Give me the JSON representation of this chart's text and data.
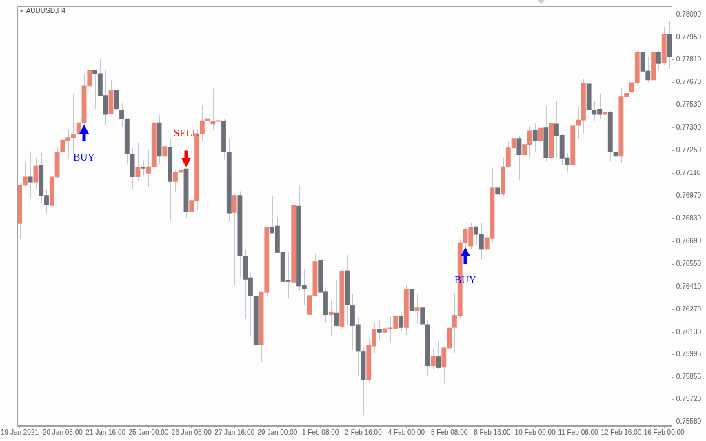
{
  "chart_data": {
    "type": "candlestick",
    "title": "AUDUSD,H4",
    "categories": [
      "19 Jan 2021",
      null,
      null,
      null,
      null,
      null,
      null,
      null,
      "20 Jan 08:00",
      null,
      null,
      null,
      null,
      null,
      null,
      null,
      "21 Jan 16:00",
      null,
      null,
      null,
      null,
      null,
      null,
      null,
      "25 Jan 00:00",
      null,
      null,
      null,
      null,
      null,
      null,
      null,
      "26 Jan 08:00",
      null,
      null,
      null,
      null,
      null,
      null,
      null,
      "27 Jan 16:00",
      null,
      null,
      null,
      null,
      null,
      null,
      null,
      "29 Jan 00:00",
      null,
      null,
      null,
      null,
      null,
      null,
      null,
      "1 Feb 08:00",
      null,
      null,
      null,
      null,
      null,
      null,
      null,
      "2 Feb 16:00",
      null,
      null,
      null,
      null,
      null,
      null,
      null,
      "4 Feb 00:00",
      null,
      null,
      null,
      null,
      null,
      null,
      null,
      "5 Feb 08:00",
      null,
      null,
      null,
      null,
      null,
      null,
      null,
      "8 Feb 16:00",
      null,
      null,
      null,
      null,
      null,
      null,
      null,
      "10 Feb 00:00",
      null,
      null,
      null,
      null,
      null,
      null,
      null,
      "11 Feb 08:00",
      null,
      null,
      null,
      null,
      null,
      null,
      null,
      "12 Feb 16:00",
      null,
      null,
      null,
      null,
      null,
      null,
      null,
      "16 Feb 00:00",
      null
    ],
    "ohlc": [
      [
        0.768,
        0.77047,
        0.76707,
        0.77038
      ],
      [
        0.77035,
        0.77181,
        0.77022,
        0.77089
      ],
      [
        0.77089,
        0.77245,
        0.76959,
        0.77056
      ],
      [
        0.77056,
        0.77203,
        0.77015,
        0.77156
      ],
      [
        0.7716,
        0.77235,
        0.76924,
        0.76973
      ],
      [
        0.76976,
        0.77015,
        0.76864,
        0.76914
      ],
      [
        0.7691,
        0.77138,
        0.76882,
        0.77089
      ],
      [
        0.77086,
        0.77273,
        0.77083,
        0.77244
      ],
      [
        0.77241,
        0.77404,
        0.7722,
        0.77318
      ],
      [
        0.77312,
        0.77385,
        0.77201,
        0.77332
      ],
      [
        0.77329,
        0.77601,
        0.77231,
        0.77353
      ],
      [
        0.7735,
        0.77483,
        0.7735,
        0.77424
      ],
      [
        0.7742,
        0.77724,
        0.77406,
        0.7765
      ],
      [
        0.77647,
        0.77767,
        0.77643,
        0.77748
      ],
      [
        0.77748,
        0.77748,
        0.77508,
        0.77724
      ],
      [
        0.77726,
        0.77814,
        0.77587,
        0.77587
      ],
      [
        0.77591,
        0.77748,
        0.77406,
        0.77471
      ],
      [
        0.77475,
        0.77685,
        0.77471,
        0.77621
      ],
      [
        0.77625,
        0.77688,
        0.77506,
        0.77506
      ],
      [
        0.77503,
        0.77541,
        0.77399,
        0.77446
      ],
      [
        0.77449,
        0.77449,
        0.77165,
        0.77228
      ],
      [
        0.77231,
        0.77266,
        0.77012,
        0.77087
      ],
      [
        0.77087,
        0.77301,
        0.77061,
        0.77147
      ],
      [
        0.77147,
        0.77192,
        0.77098,
        0.77139
      ],
      [
        0.7711,
        0.77255,
        0.77025,
        0.77152
      ],
      [
        0.77147,
        0.77434,
        0.77147,
        0.77424
      ],
      [
        0.77424,
        0.77469,
        0.77168,
        0.77214
      ],
      [
        0.77214,
        0.77354,
        0.77164,
        0.77277
      ],
      [
        0.77273,
        0.77326,
        0.76816,
        0.77059
      ],
      [
        0.77059,
        0.77131,
        0.76994,
        0.77118
      ],
      [
        0.77115,
        0.77164,
        0.77001,
        0.77134
      ],
      [
        0.77139,
        0.77139,
        0.76833,
        0.76875
      ],
      [
        0.76872,
        0.77008,
        0.76679,
        0.76946
      ],
      [
        0.76942,
        0.77385,
        0.76885,
        0.77357
      ],
      [
        0.77354,
        0.77532,
        0.77312,
        0.77436
      ],
      [
        0.77432,
        0.77524,
        0.7742,
        0.77449
      ],
      [
        0.77413,
        0.77633,
        0.77378,
        0.77432
      ],
      [
        0.77429,
        0.77445,
        0.77283,
        0.77438
      ],
      [
        0.77432,
        0.77445,
        0.77196,
        0.77241
      ],
      [
        0.77244,
        0.77326,
        0.76815,
        0.76864
      ],
      [
        0.76868,
        0.76987,
        0.76425,
        0.76976
      ],
      [
        0.76976,
        0.77001,
        0.7647,
        0.766
      ],
      [
        0.766,
        0.76645,
        0.76214,
        0.76456
      ],
      [
        0.76469,
        0.76498,
        0.76104,
        0.76357
      ],
      [
        0.76357,
        0.76357,
        0.75904,
        0.76054
      ],
      [
        0.76054,
        0.76389,
        0.75946,
        0.76379
      ],
      [
        0.76376,
        0.76782,
        0.76351,
        0.76782
      ],
      [
        0.76782,
        0.76973,
        0.76742,
        0.76742
      ],
      [
        0.76787,
        0.7684,
        0.76621,
        0.76621
      ],
      [
        0.76628,
        0.76654,
        0.76351,
        0.76443
      ],
      [
        0.76452,
        0.76624,
        0.76344,
        0.76443
      ],
      [
        0.76439,
        0.77001,
        0.76368,
        0.76914
      ],
      [
        0.7691,
        0.77035,
        0.76389,
        0.76415
      ],
      [
        0.76422,
        0.76523,
        0.76301,
        0.76397
      ],
      [
        0.76239,
        0.76431,
        0.76047,
        0.7636
      ],
      [
        0.76355,
        0.76612,
        0.76355,
        0.76569
      ],
      [
        0.76575,
        0.76619,
        0.76242,
        0.76376
      ],
      [
        0.76381,
        0.76407,
        0.76188,
        0.76238
      ],
      [
        0.76238,
        0.7633,
        0.76109,
        0.76256
      ],
      [
        0.76252,
        0.76453,
        0.76163,
        0.76171
      ],
      [
        0.76167,
        0.76522,
        0.76156,
        0.76508
      ],
      [
        0.76512,
        0.76607,
        0.76181,
        0.76301
      ],
      [
        0.76301,
        0.76368,
        0.76023,
        0.76171
      ],
      [
        0.76181,
        0.76217,
        0.75862,
        0.76012
      ],
      [
        0.76013,
        0.76044,
        0.75622,
        0.75837
      ],
      [
        0.75837,
        0.761,
        0.7582,
        0.76055
      ],
      [
        0.76045,
        0.76189,
        0.76005,
        0.76151
      ],
      [
        0.76151,
        0.76202,
        0.76079,
        0.76129
      ],
      [
        0.76129,
        0.76256,
        0.76005,
        0.76156
      ],
      [
        0.7615,
        0.7623,
        0.76072,
        0.7616
      ],
      [
        0.76154,
        0.76251,
        0.76055,
        0.7623
      ],
      [
        0.7623,
        0.76246,
        0.76135,
        0.76159
      ],
      [
        0.76159,
        0.76428,
        0.76114,
        0.76397
      ],
      [
        0.76397,
        0.7647,
        0.76184,
        0.76263
      ],
      [
        0.76264,
        0.76365,
        0.76184,
        0.76284
      ],
      [
        0.76284,
        0.76309,
        0.76058,
        0.76181
      ],
      [
        0.76181,
        0.76205,
        0.75866,
        0.75924
      ],
      [
        0.75924,
        0.76026,
        0.75908,
        0.75987
      ],
      [
        0.75983,
        0.76079,
        0.75904,
        0.75912
      ],
      [
        0.75915,
        0.7604,
        0.75816,
        0.76037
      ],
      [
        0.76033,
        0.76256,
        0.75984,
        0.76159
      ],
      [
        0.76159,
        0.76372,
        0.75999,
        0.76238
      ],
      [
        0.76234,
        0.76696,
        0.76214,
        0.76686
      ],
      [
        0.76682,
        0.7678,
        0.76658,
        0.76766
      ],
      [
        0.76661,
        0.76809,
        0.76645,
        0.76779
      ],
      [
        0.76783,
        0.76783,
        0.76666,
        0.76733
      ],
      [
        0.76737,
        0.76804,
        0.76575,
        0.7664
      ],
      [
        0.7664,
        0.76753,
        0.76501,
        0.76716
      ],
      [
        0.76707,
        0.77144,
        0.76686,
        0.77022
      ],
      [
        0.77022,
        0.77055,
        0.76959,
        0.7698
      ],
      [
        0.7698,
        0.77203,
        0.76968,
        0.77152
      ],
      [
        0.77147,
        0.77307,
        0.77143,
        0.77269
      ],
      [
        0.77265,
        0.77354,
        0.77052,
        0.77328
      ],
      [
        0.77328,
        0.7734,
        0.77069,
        0.77223
      ],
      [
        0.77223,
        0.77298,
        0.77082,
        0.7729
      ],
      [
        0.77286,
        0.77396,
        0.77207,
        0.77374
      ],
      [
        0.77378,
        0.7742,
        0.77241,
        0.77311
      ],
      [
        0.77311,
        0.77416,
        0.77301,
        0.7739
      ],
      [
        0.77392,
        0.77524,
        0.77189,
        0.77203
      ],
      [
        0.77203,
        0.77529,
        0.77182,
        0.7742
      ],
      [
        0.77416,
        0.77555,
        0.77207,
        0.77341
      ],
      [
        0.77346,
        0.7735,
        0.77161,
        0.77199
      ],
      [
        0.77207,
        0.77235,
        0.77115,
        0.77161
      ],
      [
        0.77161,
        0.77408,
        0.77157,
        0.77404
      ],
      [
        0.77404,
        0.77521,
        0.77325,
        0.77441
      ],
      [
        0.77438,
        0.77696,
        0.77354,
        0.77667
      ],
      [
        0.77663,
        0.7771,
        0.77434,
        0.775
      ],
      [
        0.77503,
        0.77555,
        0.77436,
        0.77471
      ],
      [
        0.77508,
        0.77597,
        0.77444,
        0.77471
      ],
      [
        0.77471,
        0.775,
        0.7734,
        0.77487
      ],
      [
        0.77487,
        0.77496,
        0.77189,
        0.77241
      ],
      [
        0.77241,
        0.77329,
        0.77172,
        0.77214
      ],
      [
        0.77214,
        0.77639,
        0.77175,
        0.77583
      ],
      [
        0.7758,
        0.77622,
        0.77517,
        0.77605
      ],
      [
        0.77608,
        0.77692,
        0.77566,
        0.77671
      ],
      [
        0.77668,
        0.77869,
        0.77654,
        0.77857
      ],
      [
        0.77857,
        0.77869,
        0.77696,
        0.77738
      ],
      [
        0.77742,
        0.77827,
        0.77671,
        0.77685
      ],
      [
        0.77685,
        0.77885,
        0.77671,
        0.7786
      ],
      [
        0.7786,
        0.77867,
        0.77741,
        0.77785
      ],
      [
        0.7779,
        0.78013,
        0.77776,
        0.77969
      ],
      [
        0.77969,
        0.78048,
        0.77755,
        0.77827
      ]
    ],
    "colors": [
      "#ec8474",
      "#ec8474",
      "#6c7179",
      "#ec8474",
      "#6c7179",
      "#6c7179",
      "#ec8474",
      "#ec8474",
      "#ec8474",
      "#ec8474",
      "#ec8474",
      "#ec8474",
      "#ec8474",
      "#ec8474",
      "#6c7179",
      "#6c7179",
      "#6c7179",
      "#ec8474",
      "#6c7179",
      "#6c7179",
      "#6c7179",
      "#6c7179",
      "#ec8474",
      "#6c7179",
      "#ec8474",
      "#ec8474",
      "#6c7179",
      "#ec8474",
      "#6c7179",
      "#ec8474",
      "#ec8474",
      "#6c7179",
      "#ec8474",
      "#ec8474",
      "#ec8474",
      "#ec8474",
      "#ec8474",
      "#ec8474",
      "#6c7179",
      "#6c7179",
      "#ec8474",
      "#6c7179",
      "#6c7179",
      "#6c7179",
      "#6c7179",
      "#ec8474",
      "#ec8474",
      "#6c7179",
      "#6c7179",
      "#6c7179",
      "#6c7179",
      "#ec8474",
      "#6c7179",
      "#6c7179",
      "#ec8474",
      "#ec8474",
      "#6c7179",
      "#6c7179",
      "#ec8474",
      "#6c7179",
      "#ec8474",
      "#6c7179",
      "#6c7179",
      "#6c7179",
      "#6c7179",
      "#ec8474",
      "#ec8474",
      "#6c7179",
      "#ec8474",
      "#ec8474",
      "#ec8474",
      "#6c7179",
      "#ec8474",
      "#6c7179",
      "#ec8474",
      "#6c7179",
      "#6c7179",
      "#ec8474",
      "#6c7179",
      "#ec8474",
      "#ec8474",
      "#ec8474",
      "#ec8474",
      "#ec8474",
      "#ec8474",
      "#6c7179",
      "#6c7179",
      "#ec8474",
      "#ec8474",
      "#6c7179",
      "#ec8474",
      "#ec8474",
      "#ec8474",
      "#6c7179",
      "#ec8474",
      "#ec8474",
      "#6c7179",
      "#ec8474",
      "#6c7179",
      "#ec8474",
      "#6c7179",
      "#6c7179",
      "#6c7179",
      "#ec8474",
      "#ec8474",
      "#ec8474",
      "#6c7179",
      "#6c7179",
      "#6c7179",
      "#ec8474",
      "#6c7179",
      "#6c7179",
      "#ec8474",
      "#ec8474",
      "#ec8474",
      "#ec8474",
      "#6c7179",
      "#6c7179",
      "#ec8474",
      "#6c7179",
      "#ec8474",
      "#6c7179"
    ],
    "series": [
      {
        "type": "scatter",
        "color": "#0000ff",
        "marker": "triangle",
        "values": [
          null,
          null,
          null,
          null,
          null,
          null,
          null,
          null,
          null,
          null,
          null,
          null,
          0.77359,
          null,
          null,
          null,
          null,
          null,
          null,
          null,
          null,
          null,
          null,
          null,
          null,
          null,
          null,
          null,
          null,
          null,
          null,
          null,
          null,
          null,
          null,
          null,
          null,
          null,
          null,
          null,
          null,
          null,
          null,
          null,
          null,
          null,
          null,
          null,
          null,
          null,
          null,
          null,
          null,
          null,
          null,
          null,
          null,
          null,
          null,
          null,
          null,
          null,
          null,
          null,
          null,
          null,
          null,
          null,
          null,
          null,
          null,
          null,
          null,
          null,
          null,
          null,
          null,
          null,
          null,
          null,
          null,
          null,
          null,
          0.76603,
          null,
          null,
          null,
          null,
          null,
          null,
          null,
          null,
          null,
          null,
          null,
          null,
          null,
          null,
          null,
          null,
          null,
          null,
          null,
          null,
          null,
          null,
          null,
          null,
          null,
          null,
          null,
          null,
          null,
          null,
          null,
          null,
          null,
          null,
          null,
          null,
          null,
          null
        ],
        "value_labels": [
          null,
          null,
          null,
          null,
          null,
          null,
          null,
          null,
          null,
          null,
          null,
          null,
          "BUY",
          null,
          null,
          null,
          null,
          null,
          null,
          null,
          null,
          null,
          null,
          null,
          null,
          null,
          null,
          null,
          null,
          null,
          null,
          null,
          null,
          null,
          null,
          null,
          null,
          null,
          null,
          null,
          null,
          null,
          null,
          null,
          null,
          null,
          null,
          null,
          null,
          null,
          null,
          null,
          null,
          null,
          null,
          null,
          null,
          null,
          null,
          null,
          null,
          null,
          null,
          null,
          null,
          null,
          null,
          null,
          null,
          null,
          null,
          null,
          null,
          null,
          null,
          null,
          null,
          null,
          null,
          null,
          null,
          null,
          null,
          "BUY",
          null,
          null,
          null,
          null,
          null,
          null,
          null,
          null,
          null,
          null,
          null,
          null,
          null,
          null,
          null,
          null,
          null,
          null,
          null,
          null,
          null,
          null,
          null,
          null,
          null,
          null,
          null,
          null,
          null,
          null,
          null,
          null,
          null,
          null,
          null,
          null,
          null,
          null
        ]
      },
      {
        "type": "scatter",
        "color": "#ff0000",
        "marker": "triangle",
        "values": [
          null,
          null,
          null,
          null,
          null,
          null,
          null,
          null,
          null,
          null,
          null,
          null,
          null,
          null,
          null,
          null,
          null,
          null,
          null,
          null,
          null,
          null,
          null,
          null,
          null,
          null,
          null,
          null,
          null,
          null,
          null,
          0.772,
          null,
          null,
          null,
          null,
          null,
          null,
          null,
          null,
          null,
          null,
          null,
          null,
          null,
          null,
          null,
          null,
          null,
          null,
          null,
          null,
          null,
          null,
          null,
          null,
          null,
          null,
          null,
          null,
          null,
          null,
          null,
          null,
          null,
          null,
          null,
          null,
          null,
          null,
          null,
          null,
          null,
          null,
          null,
          null,
          null,
          null,
          null,
          null,
          null,
          null,
          null,
          null,
          null,
          null,
          null,
          null,
          null,
          null,
          null,
          null,
          null,
          null,
          null,
          null,
          null,
          null,
          null,
          null,
          null,
          null,
          null,
          null,
          null,
          null,
          null,
          null,
          null,
          null,
          null,
          null,
          null,
          null,
          null,
          null,
          null,
          null,
          null,
          null,
          null,
          null
        ],
        "value_labels": [
          null,
          null,
          null,
          null,
          null,
          null,
          null,
          null,
          null,
          null,
          null,
          null,
          null,
          null,
          null,
          null,
          null,
          null,
          null,
          null,
          null,
          null,
          null,
          null,
          null,
          null,
          null,
          null,
          null,
          null,
          null,
          "SELL",
          null,
          null,
          null,
          null,
          null,
          null,
          null,
          null,
          null,
          null,
          null,
          null,
          null,
          null,
          null,
          null,
          null,
          null,
          null,
          null,
          null,
          null,
          null,
          null,
          null,
          null,
          null,
          null,
          null,
          null,
          null,
          null,
          null,
          null,
          null,
          null,
          null,
          null,
          null,
          null,
          null,
          null,
          null,
          null,
          null,
          null,
          null,
          null,
          null,
          null,
          null,
          null,
          null,
          null,
          null,
          null,
          null,
          null,
          null,
          null,
          null,
          null,
          null,
          null,
          null,
          null,
          null,
          null,
          null,
          null,
          null,
          null,
          null,
          null,
          null,
          null,
          null,
          null,
          null,
          null,
          null,
          null,
          null,
          null,
          null,
          null,
          null,
          null,
          null,
          null
        ]
      }
    ],
    "ylim": [
      0.75555,
      0.7814
    ],
    "yticks": [
      {
        "value": 0.7809,
        "label": "0.78090"
      },
      {
        "value": 0.7795,
        "label": "0.77950"
      },
      {
        "value": 0.7781,
        "label": "0.77810"
      },
      {
        "value": 0.7767,
        "label": "0.77670"
      },
      {
        "value": 0.7753,
        "label": "0.77530"
      },
      {
        "value": 0.7739,
        "label": "0.77390"
      },
      {
        "value": 0.7725,
        "label": "0.77250"
      },
      {
        "value": 0.7711,
        "label": "0.77110"
      },
      {
        "value": 0.7697,
        "label": "0.76970"
      },
      {
        "value": 0.7683,
        "label": "0.76830"
      },
      {
        "value": 0.7669,
        "label": "0.76690"
      },
      {
        "value": 0.7655,
        "label": "0.76550"
      },
      {
        "value": 0.7641,
        "label": "0.76410"
      },
      {
        "value": 0.7627,
        "label": "0.76270"
      },
      {
        "value": 0.7613,
        "label": "0.76130"
      },
      {
        "value": 0.75995,
        "label": "0.75995"
      },
      {
        "value": 0.75855,
        "label": "0.75855"
      },
      {
        "value": 0.7572,
        "label": "0.75720"
      },
      {
        "value": 0.7558,
        "label": "0.75580"
      }
    ],
    "grid": false,
    "legend": false
  }
}
